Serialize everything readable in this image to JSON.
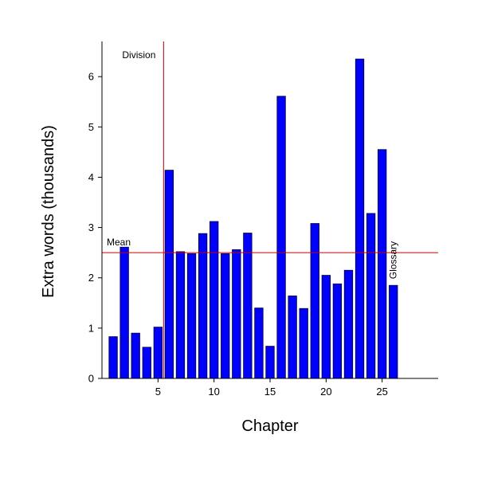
{
  "chart_data": {
    "type": "bar",
    "xlabel": "Chapter",
    "ylabel": "Extra words (thousands)",
    "xlim": [
      0,
      30
    ],
    "ylim": [
      0,
      6.7
    ],
    "xticks": [
      5,
      10,
      15,
      20,
      25
    ],
    "yticks": [
      0,
      1,
      2,
      3,
      4,
      5,
      6
    ],
    "bar_color": "#0000ff",
    "bar_edge_color": "#000033",
    "line_color": "#cc0000",
    "x": [
      1,
      2,
      3,
      4,
      5,
      6,
      7,
      8,
      9,
      10,
      11,
      12,
      13,
      14,
      15,
      16,
      17,
      18,
      19,
      20,
      21,
      22,
      23,
      24,
      25,
      26
    ],
    "values": [
      0.83,
      2.61,
      0.9,
      0.62,
      1.02,
      4.14,
      2.52,
      2.48,
      2.88,
      3.12,
      2.48,
      2.56,
      2.89,
      1.4,
      0.64,
      5.61,
      1.64,
      1.39,
      3.08,
      2.05,
      1.88,
      2.15,
      6.35,
      3.28,
      4.55,
      1.85
    ],
    "annotations": {
      "division": {
        "label": "Division",
        "x": 5.5
      },
      "mean": {
        "label": "Mean",
        "y": 2.5
      },
      "glossary": {
        "label": "Glossary",
        "x": 26
      }
    }
  }
}
